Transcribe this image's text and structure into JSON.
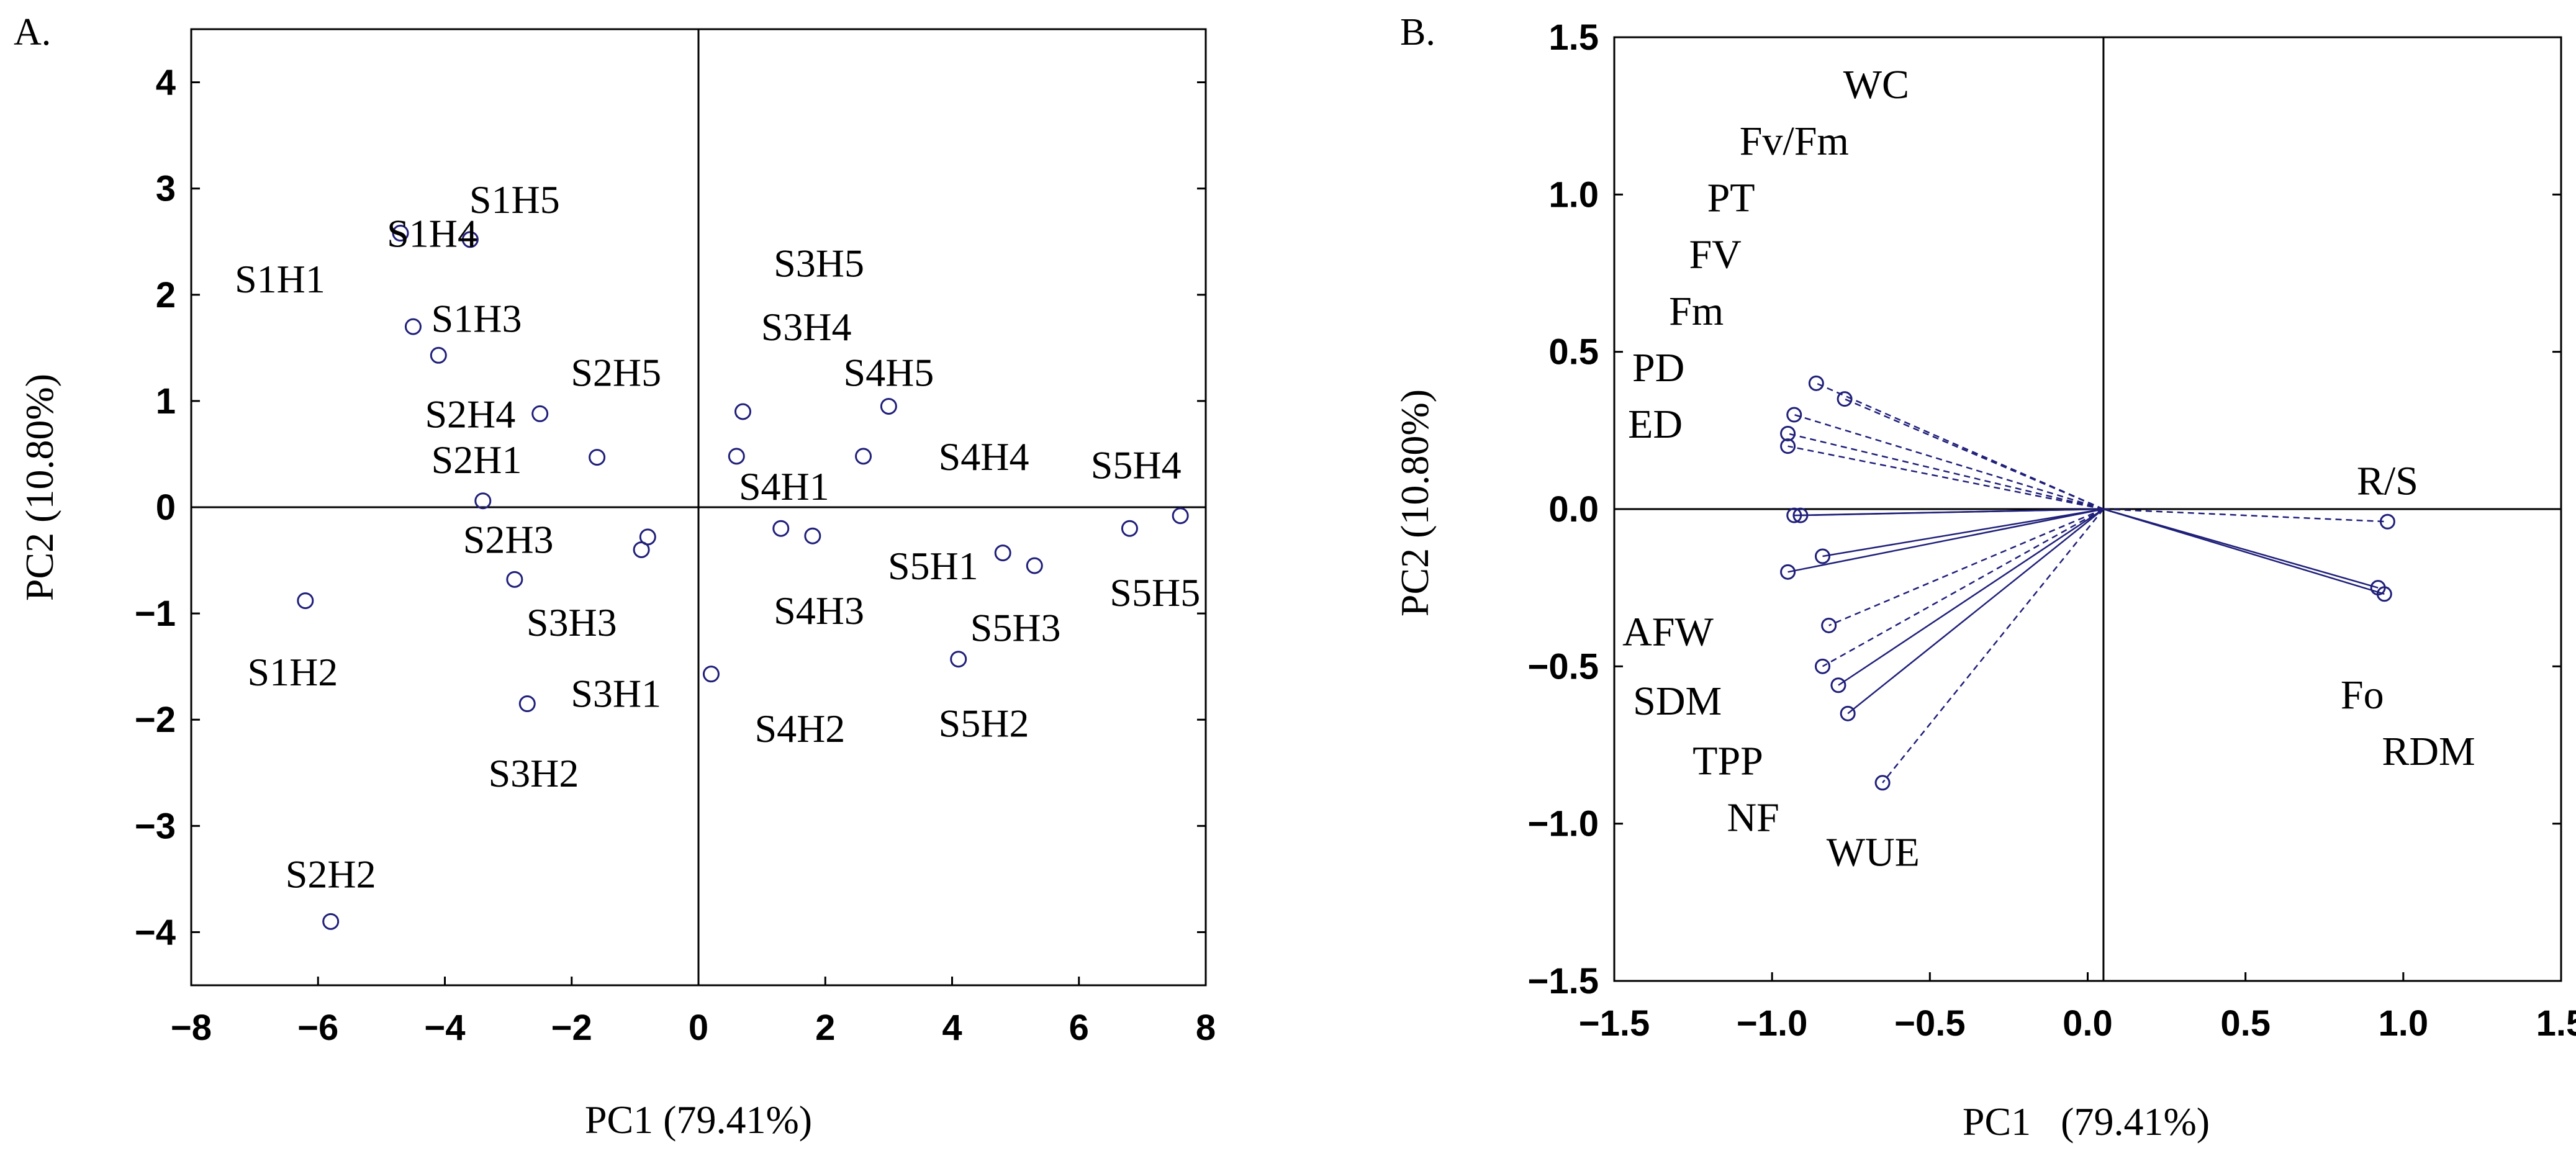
{
  "chart_data": [
    {
      "type": "scatter",
      "panel_label": "A.",
      "xlabel": "PC1 (79.41%)",
      "ylabel": "PC2 (10.80%)",
      "xlim": [
        -8,
        8
      ],
      "ylim": [
        -4.5,
        4.5
      ],
      "xticks": [
        -8,
        -6,
        -4,
        -2,
        0,
        2,
        4,
        6,
        8
      ],
      "yticks": [
        4,
        3,
        2,
        1,
        0,
        -1,
        -2,
        -3,
        -4
      ],
      "xtick_labels": [
        "−8",
        "−6",
        "−4",
        "−2",
        "0",
        "2",
        "4",
        "6",
        "8"
      ],
      "ytick_labels": [
        "4",
        "3",
        "2",
        "1",
        "0",
        "−1",
        "−2",
        "−3",
        "−4"
      ],
      "points": [
        {
          "label": "S1H1",
          "x": -4.7,
          "y": 2.58,
          "lx": -6.6,
          "ly": 2.15
        },
        {
          "label": "S1H2",
          "x": -6.2,
          "y": -0.88,
          "lx": -6.4,
          "ly": -1.55
        },
        {
          "label": "S1H3",
          "x": -4.5,
          "y": 1.7,
          "lx": -3.5,
          "ly": 1.78
        },
        {
          "label": "S1H4",
          "x": -4.1,
          "y": 1.43,
          "lx": -4.2,
          "ly": 2.58
        },
        {
          "label": "S1H5",
          "x": -3.6,
          "y": 2.52,
          "lx": -2.9,
          "ly": 2.9
        },
        {
          "label": "S2H1",
          "x": -3.4,
          "y": 0.06,
          "lx": -3.5,
          "ly": 0.45
        },
        {
          "label": "S2H2",
          "x": -5.8,
          "y": -3.9,
          "lx": -5.8,
          "ly": -3.45
        },
        {
          "label": "S2H3",
          "x": -2.9,
          "y": -0.68,
          "lx": -3.0,
          "ly": -0.3
        },
        {
          "label": "S2H4",
          "x": -2.5,
          "y": 0.88,
          "lx": -3.6,
          "ly": 0.88
        },
        {
          "label": "S2H5",
          "x": -1.6,
          "y": 0.47,
          "lx": -1.3,
          "ly": 1.27
        },
        {
          "label": "S3H1",
          "x": -2.7,
          "y": -1.85,
          "lx": -1.3,
          "ly": -1.75
        },
        {
          "label": "S3H2",
          "x": -0.9,
          "y": -0.4,
          "lx": -2.6,
          "ly": -2.5
        },
        {
          "label": "S3H3",
          "x": -0.8,
          "y": -0.28,
          "lx": -2.0,
          "ly": -1.08
        },
        {
          "label": "S3H4",
          "x": 0.7,
          "y": 0.9,
          "lx": 1.7,
          "ly": 1.7
        },
        {
          "label": "S3H5",
          "x": 0.6,
          "y": 0.48,
          "lx": 1.9,
          "ly": 2.3
        },
        {
          "label": "S4H1",
          "x": 1.3,
          "y": -0.2,
          "lx": 1.35,
          "ly": 0.2
        },
        {
          "label": "S4H2",
          "x": 0.2,
          "y": -1.57,
          "lx": 1.6,
          "ly": -2.08
        },
        {
          "label": "S4H3",
          "x": 1.8,
          "y": -0.27,
          "lx": 1.9,
          "ly": -0.97
        },
        {
          "label": "S4H4",
          "x": 2.6,
          "y": 0.48,
          "lx": 4.5,
          "ly": 0.48
        },
        {
          "label": "S4H5",
          "x": 3.0,
          "y": 0.95,
          "lx": 3.0,
          "ly": 1.27
        },
        {
          "label": "S5H1",
          "x": 4.8,
          "y": -0.43,
          "lx": 3.7,
          "ly": -0.55
        },
        {
          "label": "S5H2",
          "x": 4.1,
          "y": -1.43,
          "lx": 4.5,
          "ly": -2.03
        },
        {
          "label": "S5H3",
          "x": 5.3,
          "y": -0.55,
          "lx": 5.0,
          "ly": -1.13
        },
        {
          "label": "S5H4",
          "x": 6.8,
          "y": -0.2,
          "lx": 6.9,
          "ly": 0.4
        },
        {
          "label": "S5H5",
          "x": 7.6,
          "y": -0.08,
          "lx": 7.2,
          "ly": -0.8
        }
      ]
    },
    {
      "type": "biplot",
      "panel_label": "B.",
      "xlabel": "PC1   (79.41%)",
      "ylabel": "PC2 (10.80%)",
      "xlim": [
        -1.5,
        1.5
      ],
      "ylim": [
        -1.5,
        1.5
      ],
      "xticks": [
        -1.5,
        -1.0,
        -0.5,
        0.0,
        0.5,
        1.0,
        1.5
      ],
      "yticks": [
        1.5,
        1.0,
        0.5,
        0.0,
        -0.5,
        -1.0,
        -1.5
      ],
      "xtick_labels": [
        "−1.5",
        "−1.0",
        "−0.5",
        "0.0",
        "0.5",
        "1.0",
        "1.5"
      ],
      "ytick_labels": [
        "1.5",
        "1.0",
        "0.5",
        "0.0",
        "−0.5",
        "−1.0",
        "−1.5"
      ],
      "origin": [
        0.0,
        0.0
      ],
      "vectors": [
        {
          "x": -0.86,
          "y": 0.4,
          "dashed": true
        },
        {
          "x": -0.77,
          "y": 0.35,
          "dashed": true
        },
        {
          "x": -0.93,
          "y": 0.3,
          "dashed": true
        },
        {
          "x": -0.95,
          "y": 0.24,
          "dashed": true
        },
        {
          "x": -0.95,
          "y": 0.2,
          "dashed": true
        },
        {
          "x": -0.93,
          "y": -0.02,
          "dashed": false
        },
        {
          "x": -0.91,
          "y": -0.02,
          "dashed": false
        },
        {
          "x": -0.84,
          "y": -0.15,
          "dashed": false
        },
        {
          "x": -0.95,
          "y": -0.2,
          "dashed": false
        },
        {
          "x": -0.82,
          "y": -0.37,
          "dashed": true
        },
        {
          "x": -0.84,
          "y": -0.5,
          "dashed": true
        },
        {
          "x": -0.79,
          "y": -0.56,
          "dashed": false
        },
        {
          "x": -0.76,
          "y": -0.65,
          "dashed": false
        },
        {
          "x": -0.65,
          "y": -0.87,
          "dashed": true
        },
        {
          "x": 0.95,
          "y": -0.04,
          "dashed": true
        },
        {
          "x": 0.92,
          "y": -0.25,
          "dashed": false
        },
        {
          "x": 0.94,
          "y": -0.27,
          "dashed": false
        }
      ],
      "labels": [
        {
          "text": "WC",
          "x": -0.67,
          "y": 1.35
        },
        {
          "text": "Fv/Fm",
          "x": -0.93,
          "y": 1.17
        },
        {
          "text": "PT",
          "x": -1.13,
          "y": 0.99
        },
        {
          "text": "FV",
          "x": -1.18,
          "y": 0.81
        },
        {
          "text": "Fm",
          "x": -1.24,
          "y": 0.63
        },
        {
          "text": "PD",
          "x": -1.36,
          "y": 0.45
        },
        {
          "text": "ED",
          "x": -1.37,
          "y": 0.27
        },
        {
          "text": "R/S",
          "x": 0.95,
          "y": 0.09
        },
        {
          "text": "AFW",
          "x": -1.33,
          "y": -0.39
        },
        {
          "text": "SDM",
          "x": -1.3,
          "y": -0.61
        },
        {
          "text": "TPP",
          "x": -1.14,
          "y": -0.8
        },
        {
          "text": "NF",
          "x": -1.06,
          "y": -0.98
        },
        {
          "text": "WUE",
          "x": -0.68,
          "y": -1.09
        },
        {
          "text": "Fo",
          "x": 0.87,
          "y": -0.59
        },
        {
          "text": "RDM",
          "x": 1.08,
          "y": -0.77
        }
      ]
    }
  ]
}
